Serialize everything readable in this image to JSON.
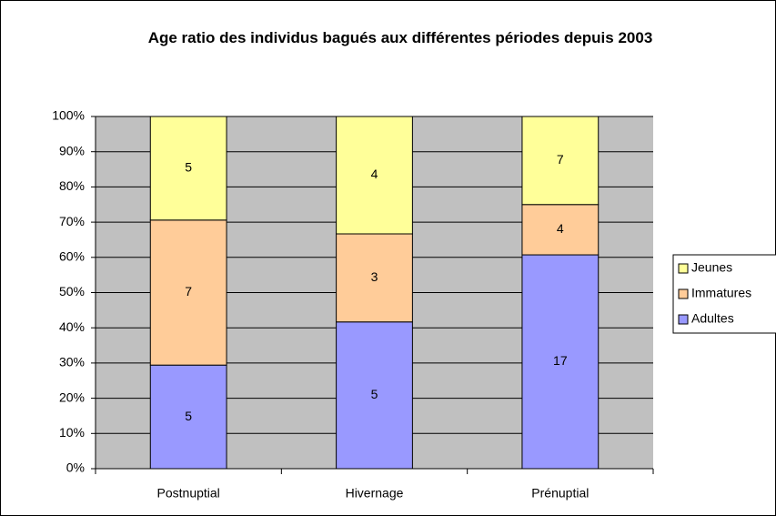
{
  "chart_data": {
    "type": "bar",
    "stacked": "percent",
    "title": "Age ratio des individus bagués aux différentes périodes depuis 2003",
    "categories": [
      "Postnuptial",
      "Hivernage",
      "Prénuptial"
    ],
    "series": [
      {
        "name": "Adultes",
        "color": "#9999ff",
        "values": [
          5,
          5,
          17
        ]
      },
      {
        "name": "Immatures",
        "color": "#ffcc99",
        "values": [
          7,
          3,
          4
        ]
      },
      {
        "name": "Jeunes",
        "color": "#ffff99",
        "values": [
          5,
          4,
          7
        ]
      }
    ],
    "ylim": [
      0,
      100
    ],
    "yticks": [
      {
        "value": 0,
        "label": "0%"
      },
      {
        "value": 10,
        "label": "10%"
      },
      {
        "value": 20,
        "label": "20%"
      },
      {
        "value": 30,
        "label": "30%"
      },
      {
        "value": 40,
        "label": "40%"
      },
      {
        "value": 50,
        "label": "50%"
      },
      {
        "value": 60,
        "label": "60%"
      },
      {
        "value": 70,
        "label": "70%"
      },
      {
        "value": 80,
        "label": "80%"
      },
      {
        "value": 90,
        "label": "90%"
      },
      {
        "value": 100,
        "label": "100%"
      }
    ],
    "grid": true,
    "legend": "right",
    "plot_background": "#c0c0c0"
  }
}
